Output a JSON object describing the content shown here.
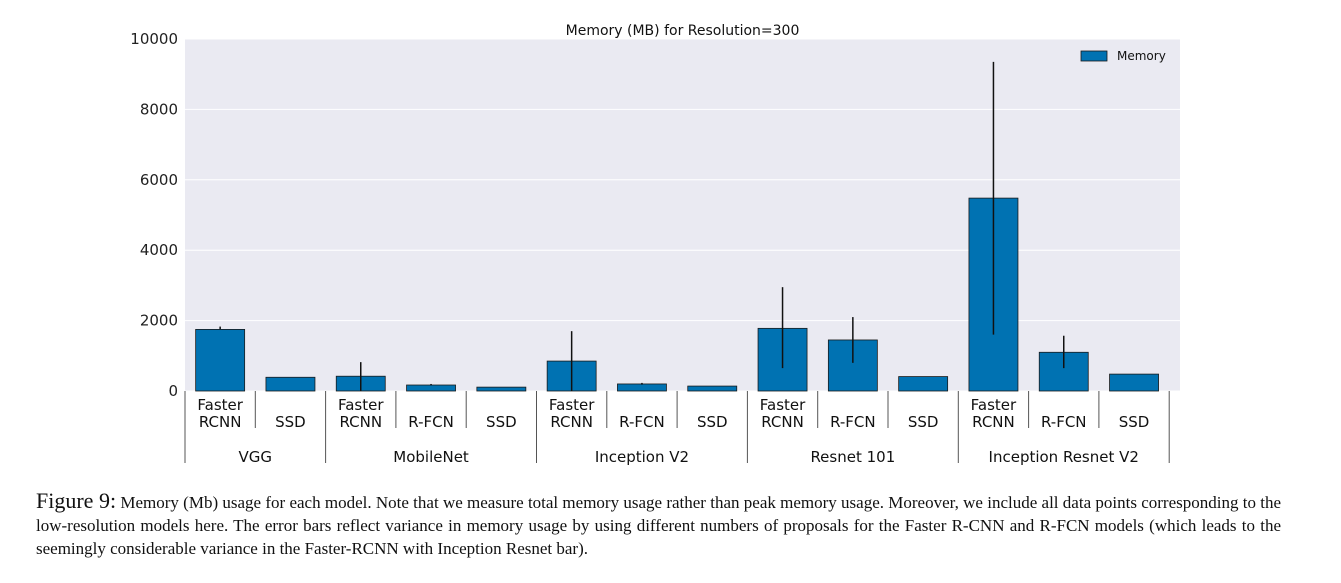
{
  "figure": {
    "label": "Figure 9:",
    "caption": "Memory (Mb) usage for each model. Note that we measure total memory usage rather than peak memory usage. Moreover, we include all data points corresponding to the low-resolution models here. The error bars reflect variance in memory usage by using different numbers of proposals for the Faster R-CNN and R-FCN models (which leads to the seemingly considerable variance in the Faster-RCNN with Inception Resnet bar)."
  },
  "colors": {
    "bar": "#0072b2",
    "plot_bg": "#eaeaf2",
    "grid": "#ffffff",
    "error": "#111111"
  },
  "chart_data": {
    "type": "bar",
    "title": "Memory (MB) for Resolution=300",
    "ylim": [
      0,
      10000
    ],
    "yticks": [
      "0",
      "2000",
      "4000",
      "6000",
      "8000",
      "10000"
    ],
    "legend": {
      "label": "Memory",
      "position": "top-right"
    },
    "grid": true,
    "groups": [
      {
        "name": "VGG",
        "bars": [
          {
            "meta": "Faster RCNN",
            "value": 1750,
            "err_low": 1750,
            "err_high": 1830
          },
          {
            "meta": "SSD",
            "value": 390,
            "err_low": 390,
            "err_high": 390
          }
        ]
      },
      {
        "name": "MobileNet",
        "bars": [
          {
            "meta": "Faster RCNN",
            "value": 420,
            "err_low": 0,
            "err_high": 820
          },
          {
            "meta": "R-FCN",
            "value": 170,
            "err_low": 160,
            "err_high": 200
          },
          {
            "meta": "SSD",
            "value": 110,
            "err_low": 110,
            "err_high": 110
          }
        ]
      },
      {
        "name": "Inception V2",
        "bars": [
          {
            "meta": "Faster RCNN",
            "value": 850,
            "err_low": 0,
            "err_high": 1700
          },
          {
            "meta": "R-FCN",
            "value": 200,
            "err_low": 180,
            "err_high": 230
          },
          {
            "meta": "SSD",
            "value": 140,
            "err_low": 140,
            "err_high": 140
          }
        ]
      },
      {
        "name": "Resnet 101",
        "bars": [
          {
            "meta": "Faster RCNN",
            "value": 1780,
            "err_low": 650,
            "err_high": 2950
          },
          {
            "meta": "R-FCN",
            "value": 1450,
            "err_low": 800,
            "err_high": 2100
          },
          {
            "meta": "SSD",
            "value": 410,
            "err_low": 410,
            "err_high": 410
          }
        ]
      },
      {
        "name": "Inception Resnet V2",
        "bars": [
          {
            "meta": "Faster RCNN",
            "value": 5480,
            "err_low": 1600,
            "err_high": 9350
          },
          {
            "meta": "R-FCN",
            "value": 1100,
            "err_low": 650,
            "err_high": 1570
          },
          {
            "meta": "SSD",
            "value": 480,
            "err_low": 480,
            "err_high": 480
          }
        ]
      }
    ]
  }
}
